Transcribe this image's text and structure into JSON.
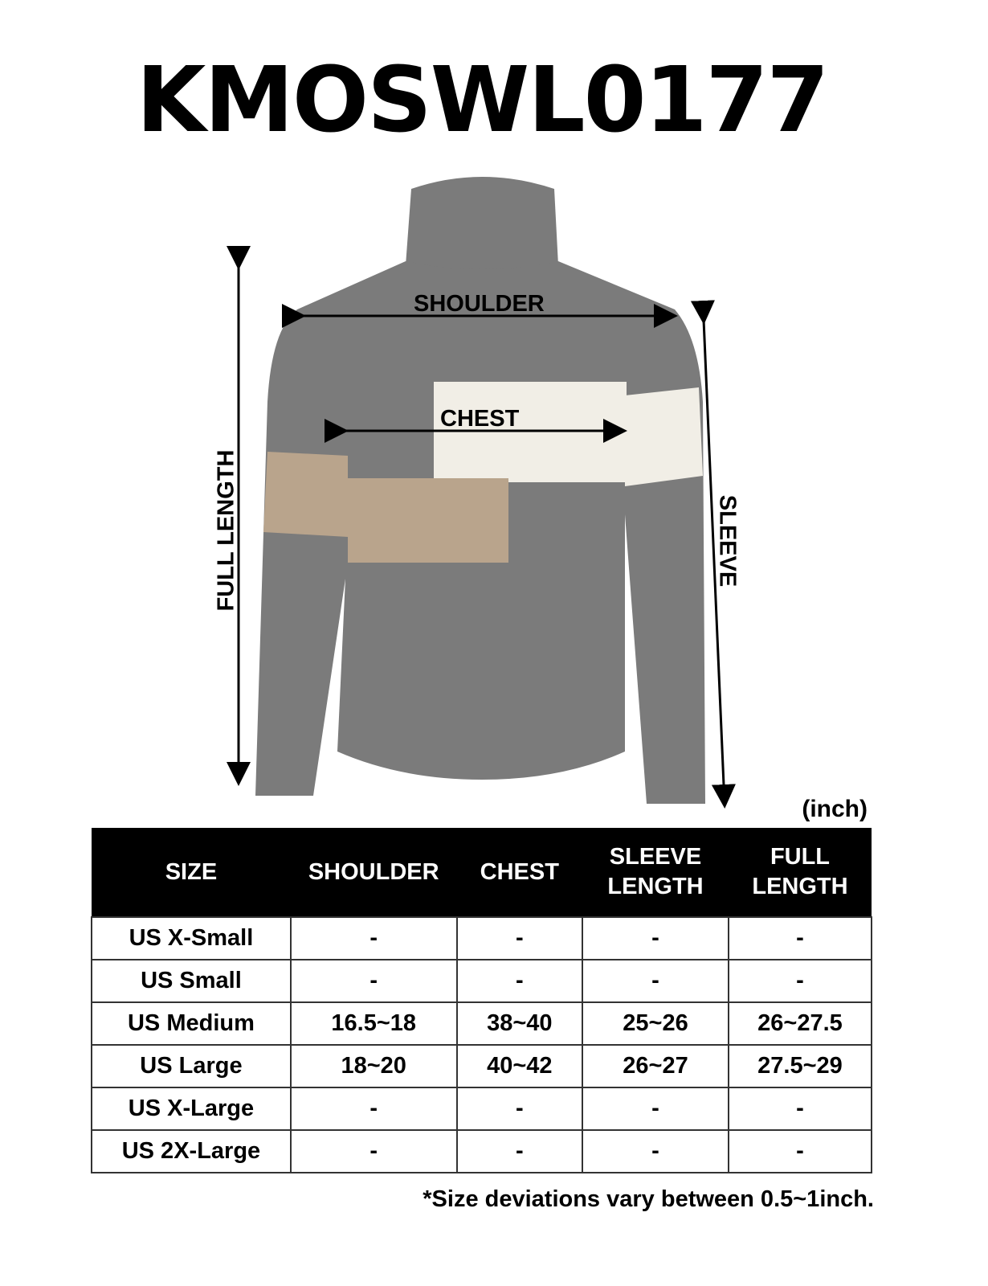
{
  "title": "KMOSWL0177",
  "diagram": {
    "labels": {
      "shoulder": "SHOULDER",
      "chest": "CHEST",
      "full_length": "FULL LENGTH",
      "sleeve": "SLEEVE"
    },
    "colors": {
      "body": "#7b7b7b",
      "cream": "#f1eee6",
      "tan": "#b9a48c"
    }
  },
  "unit": "(inch)",
  "table": {
    "headers": [
      "SIZE",
      "SHOULDER",
      "CHEST",
      "SLEEVE LENGTH",
      "FULL LENGTH"
    ],
    "rows": [
      [
        "US X-Small",
        "-",
        "-",
        "-",
        "-"
      ],
      [
        "US Small",
        "-",
        "-",
        "-",
        "-"
      ],
      [
        "US Medium",
        "16.5~18",
        "38~40",
        "25~26",
        "26~27.5"
      ],
      [
        "US Large",
        "18~20",
        "40~42",
        "26~27",
        "27.5~29"
      ],
      [
        "US X-Large",
        "-",
        "-",
        "-",
        "-"
      ],
      [
        "US 2X-Large",
        "-",
        "-",
        "-",
        "-"
      ]
    ]
  },
  "note": "*Size deviations vary between 0.5~1inch."
}
